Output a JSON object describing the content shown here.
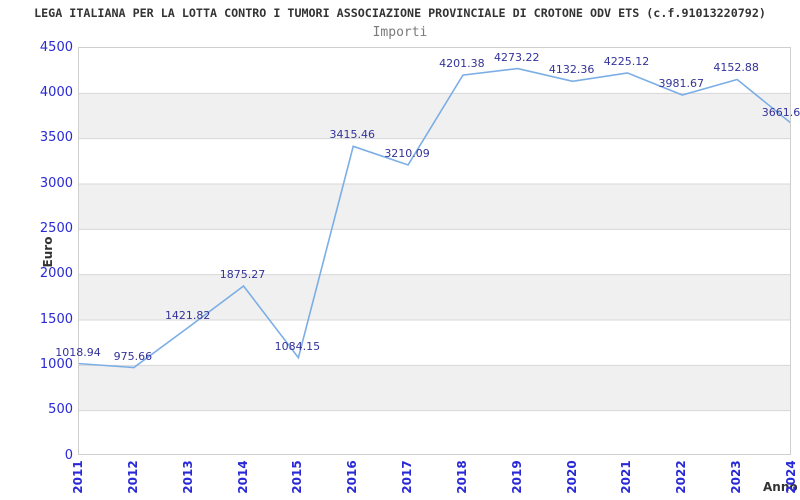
{
  "title": "LEGA ITALIANA PER LA LOTTA CONTRO I TUMORI ASSOCIAZIONE PROVINCIALE DI CROTONE ODV ETS (c.f.91013220792)",
  "subtitle": "Importi",
  "chart_data": {
    "type": "line",
    "title": "Importi",
    "xlabel": "Anno",
    "ylabel": "Euro",
    "categories": [
      "2011",
      "2012",
      "2013",
      "2014",
      "2015",
      "2016",
      "2017",
      "2018",
      "2019",
      "2020",
      "2021",
      "2022",
      "2023",
      "2024"
    ],
    "values": [
      1018.94,
      975.66,
      1421.82,
      1875.27,
      1084.15,
      3415.46,
      3210.09,
      4201.38,
      4273.22,
      4132.36,
      4225.12,
      3981.67,
      4152.88,
      3661.6
    ],
    "point_labels": [
      "1018.94",
      "975.66",
      "1421.82",
      "1875.27",
      "1084.15",
      "3415.46",
      "3210.09",
      "4201.38",
      "4273.22",
      "4132.36",
      "4225.12",
      "3981.67",
      "4152.88",
      "3661.6"
    ],
    "ylim": [
      0,
      4500
    ],
    "ytick_step": 500,
    "yticks": [
      "0",
      "500",
      "1000",
      "1500",
      "2000",
      "2500",
      "3000",
      "3500",
      "4000",
      "4500"
    ],
    "grid": "horizontal",
    "legend_position": "none",
    "colors": {
      "line": "#7caee6",
      "band": "#f0f0f0",
      "gridline": "#d7d7d7",
      "plot_border": "#cfcfcf",
      "tick_labels": "#2929d6",
      "point_labels": "#333399",
      "title": "#333333",
      "subtitle": "#7b7b7b"
    }
  }
}
